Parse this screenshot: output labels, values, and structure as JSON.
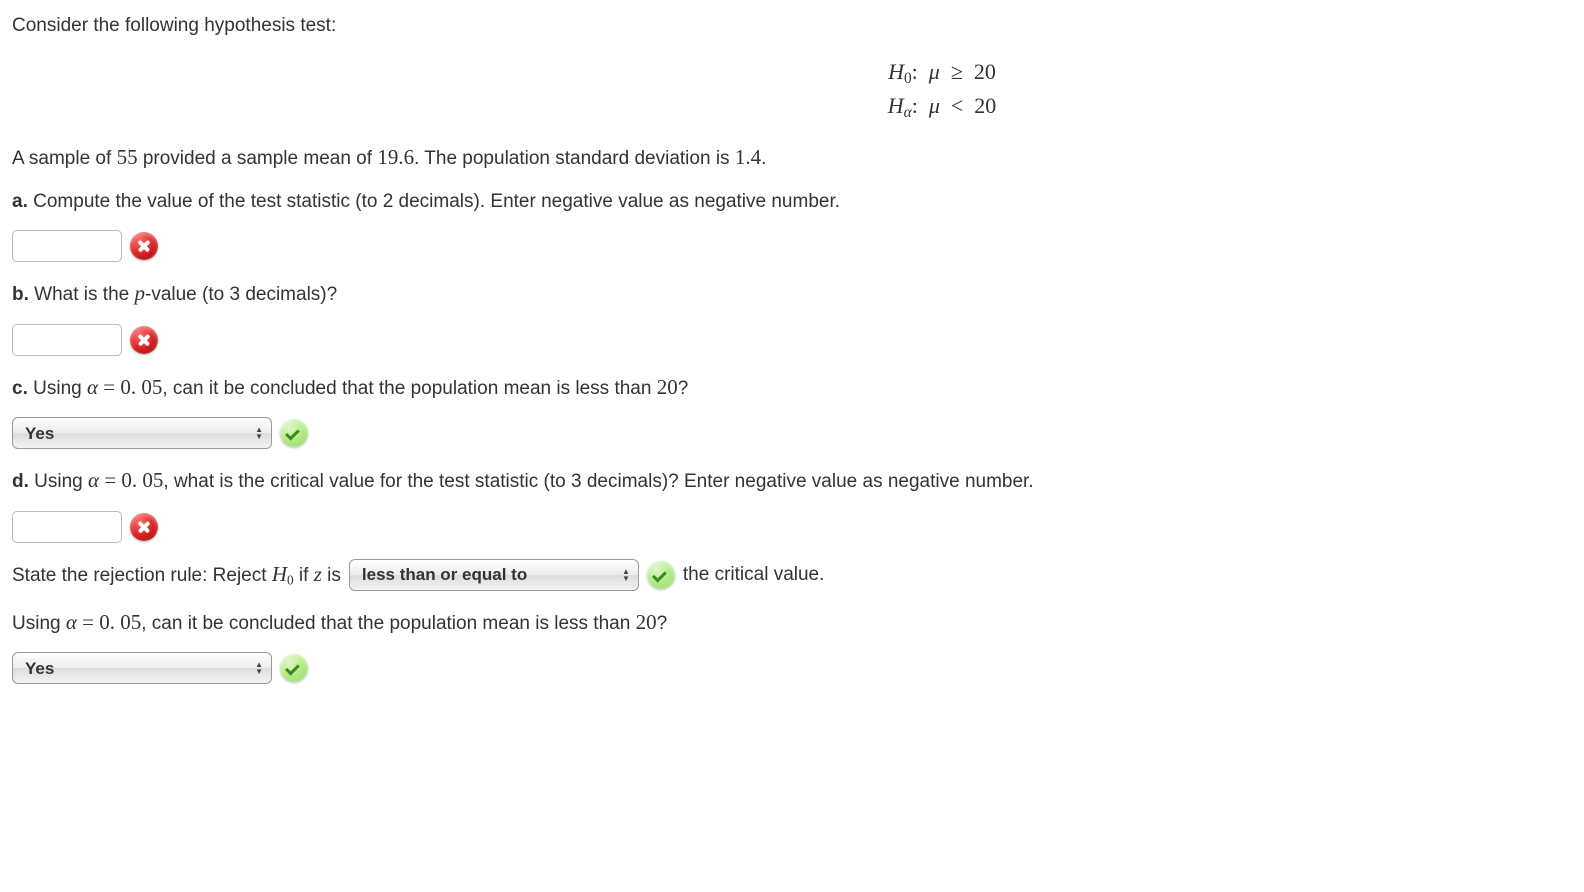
{
  "intro": "Consider the following hypothesis test:",
  "hypotheses": {
    "h0_left": "H",
    "h0_sub": "0",
    "ha_left": "H",
    "ha_sub": "α",
    "colon": ":",
    "mu": "μ",
    "ge": "≥",
    "lt": "<",
    "val": "20"
  },
  "sample_line_pre": "A sample of ",
  "sample_n": "55",
  "sample_line_mid": " provided a sample mean of ",
  "sample_mean": "19.6",
  "sample_line_mid2": ". The population standard deviation is ",
  "pop_sd": "1.4",
  "period": ".",
  "parts": {
    "a_label": "a.",
    "a_text": " Compute the value of the test statistic (to 2 decimals). Enter negative value as negative number.",
    "b_label": "b.",
    "b_text_pre": " What is the ",
    "b_text_p": "p",
    "b_text_post": "-value (to 3 decimals)?",
    "c_label": "c.",
    "c_text_pre": " Using ",
    "c_alpha": "α",
    "c_eq": " = ",
    "c_val": "0. 05",
    "c_text_mid": ", can it be concluded that the population mean is less than ",
    "c_twenty": "20",
    "c_q": "?",
    "d_label": "d.",
    "d_text_pre": " Using ",
    "d_text_mid1": ", what is the critical value for the test statistic (to 3 decimals)? Enter negative value as negative number."
  },
  "rejection": {
    "pre": "State the rejection rule: Reject ",
    "h0_H": "H",
    "h0_sub": "0",
    "if_z": " if ",
    "z": "z",
    "is": " is",
    "post": " the critical value."
  },
  "final_conclusion_pre": "Using ",
  "final_conclusion_mid": ", can it be concluded that the population mean is less than ",
  "select_yes": "Yes",
  "select_rejection": "less than or equal to"
}
